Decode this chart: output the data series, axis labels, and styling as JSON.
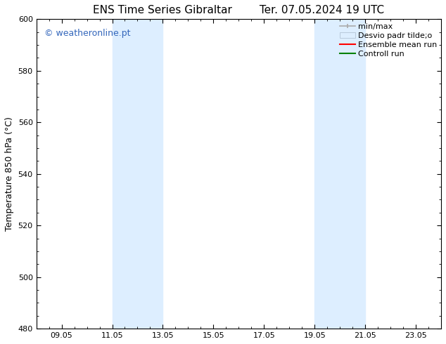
{
  "title": "ENS Time Series Gibraltar",
  "title2": "Ter. 07.05.2024 19 UTC",
  "ylabel": "Temperature 850 hPa (°C)",
  "ylim": [
    480,
    600
  ],
  "yticks": [
    480,
    500,
    520,
    540,
    560,
    580,
    600
  ],
  "xtick_labels": [
    "09.05",
    "11.05",
    "13.05",
    "15.05",
    "17.05",
    "19.05",
    "21.05",
    "23.05"
  ],
  "xtick_positions": [
    1,
    3,
    5,
    7,
    9,
    11,
    13,
    15
  ],
  "x_min": 0,
  "x_max": 16,
  "shade_bands": [
    {
      "x_start": 3,
      "x_end": 5
    },
    {
      "x_start": 11,
      "x_end": 13
    }
  ],
  "shade_color": "#ddeeff",
  "watermark_text": "© weatheronline.pt",
  "watermark_color": "#3366bb",
  "bg_color": "#ffffff",
  "plot_bg_color": "#ffffff",
  "title_fontsize": 11,
  "label_fontsize": 9,
  "tick_fontsize": 8,
  "watermark_fontsize": 9,
  "legend_fontsize": 8
}
